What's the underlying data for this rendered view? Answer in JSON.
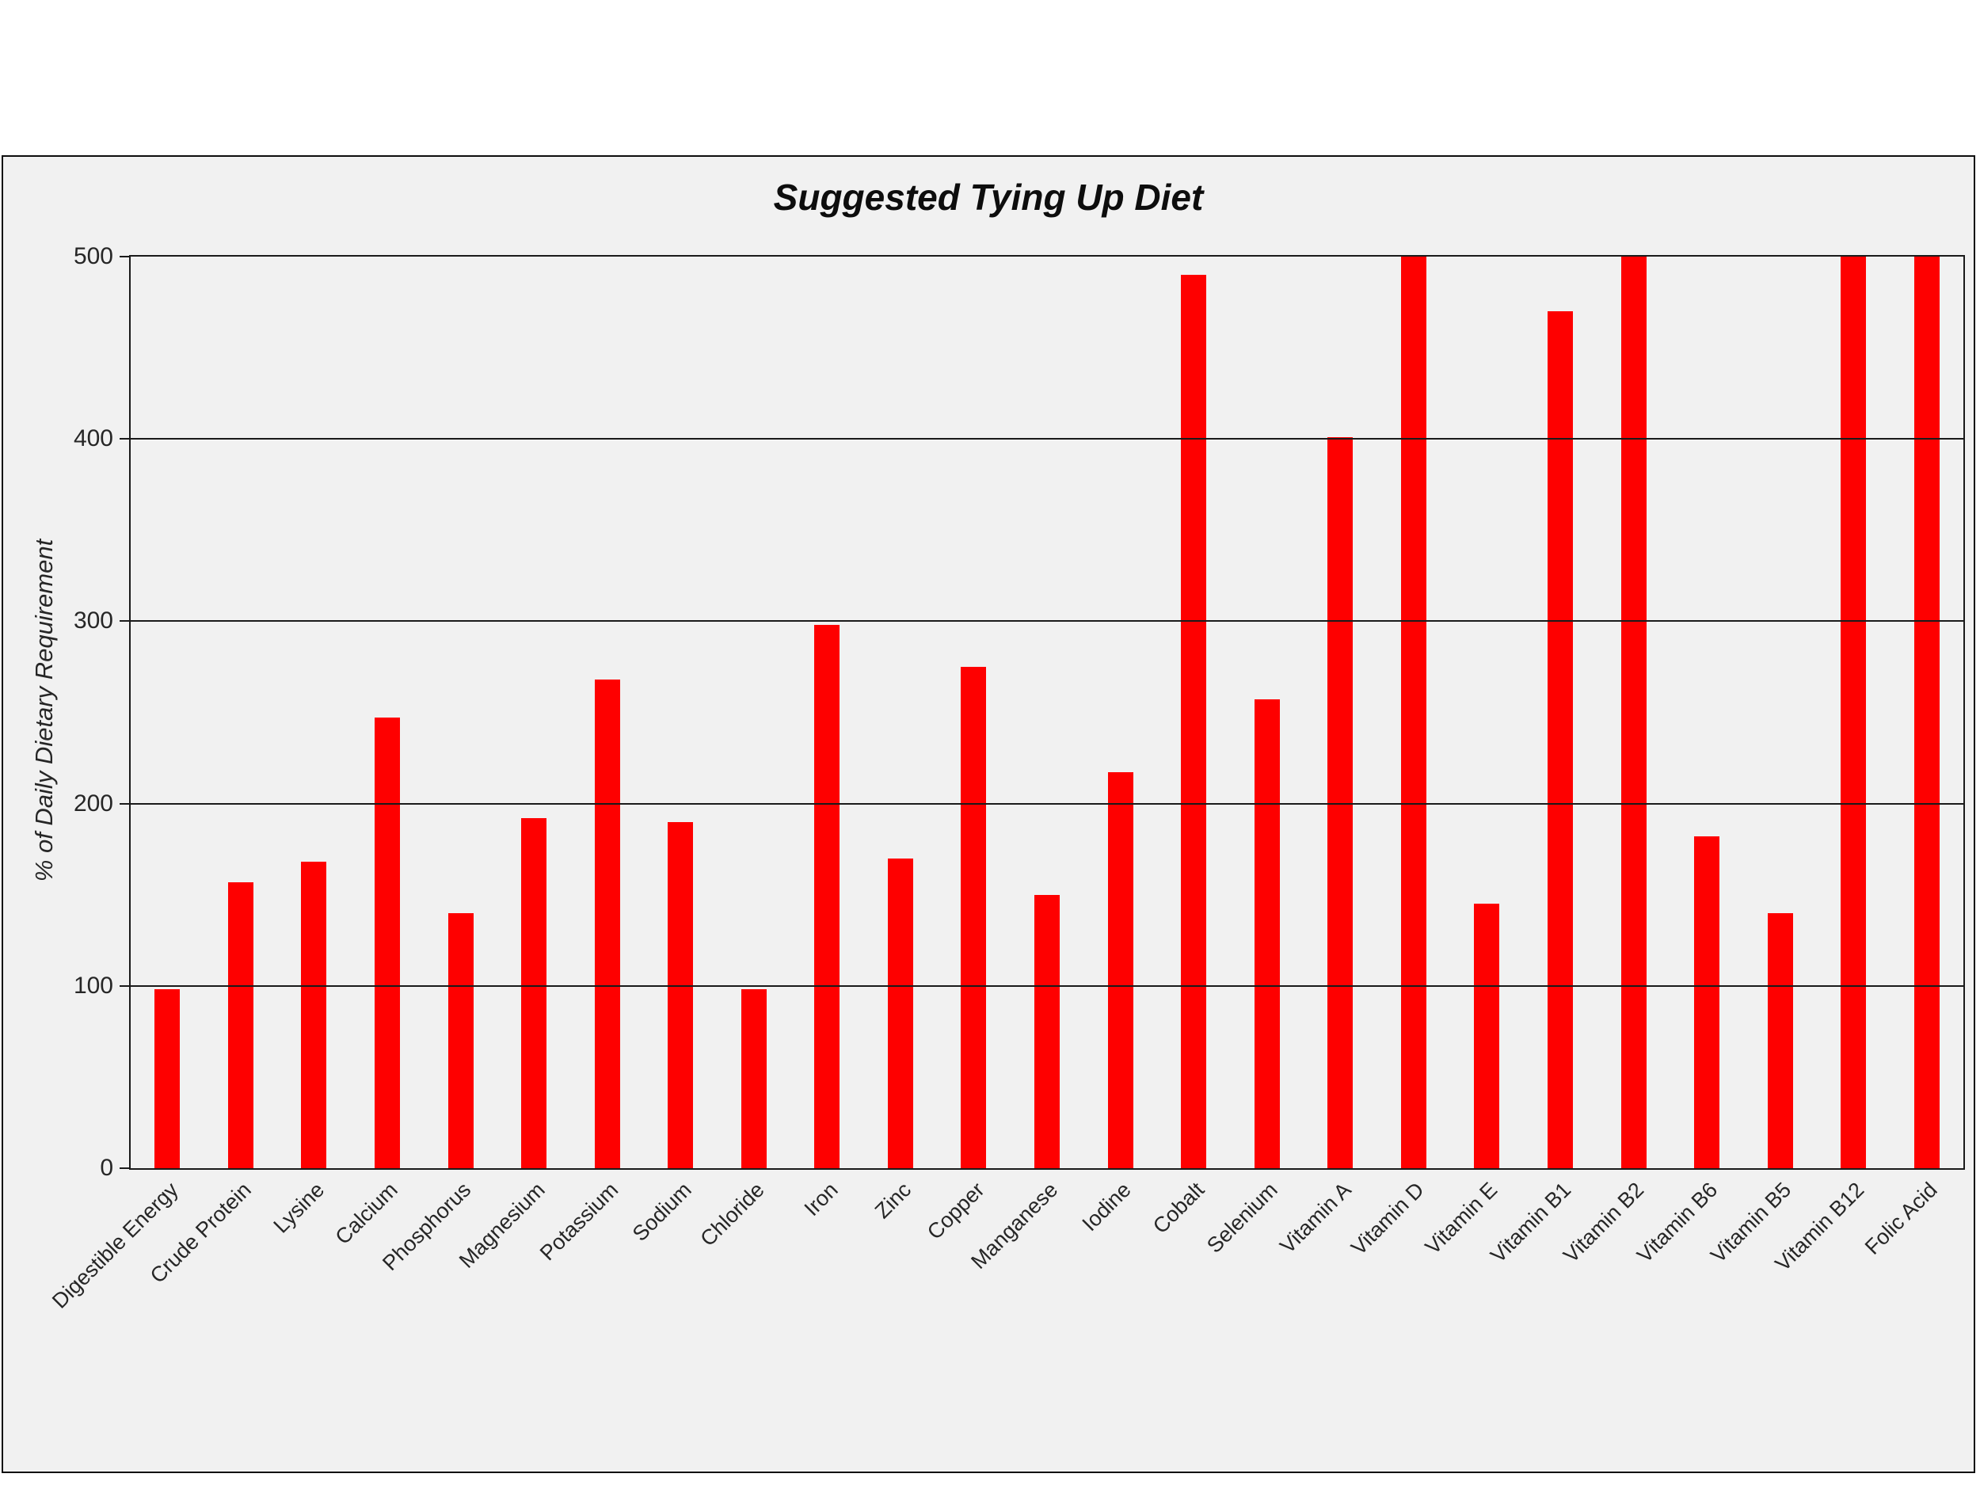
{
  "figure": {
    "background_color": "#F1F1F1",
    "border_color": "#0D0D0D"
  },
  "chart_data": {
    "type": "bar",
    "title": "Suggested Tying Up Diet",
    "xlabel": "",
    "ylabel": "% of Daily Dietary Requirement",
    "ylim": [
      0,
      500
    ],
    "yticks": [
      0,
      100,
      200,
      300,
      400,
      500
    ],
    "grid": true,
    "legend": "none",
    "bar_color": "#FE0000",
    "grid_color": "#1A1A1A",
    "categories": [
      "Digestible Energy",
      "Crude Protein",
      "Lysine",
      "Calcium",
      "Phosphorus",
      "Magnesium",
      "Potassium",
      "Sodium",
      "Chloride",
      "Iron",
      "Zinc",
      "Copper",
      "Manganese",
      "Iodine",
      "Cobalt",
      "Selenium",
      "Vitamin A",
      "Vitamin D",
      "Vitamin E",
      "Vitamin B1",
      "Vitamin B2",
      "Vitamin B6",
      "Vitamin B5",
      "Vitamin B12",
      "Folic Acid"
    ],
    "values": [
      98,
      157,
      168,
      247,
      140,
      192,
      268,
      190,
      98,
      298,
      170,
      275,
      150,
      217,
      490,
      257,
      401,
      500,
      145,
      470,
      500,
      182,
      140,
      500,
      500
    ],
    "clipped_at_max": [
      "Vitamin D",
      "Vitamin B2",
      "Vitamin B12",
      "Folic Acid"
    ]
  }
}
